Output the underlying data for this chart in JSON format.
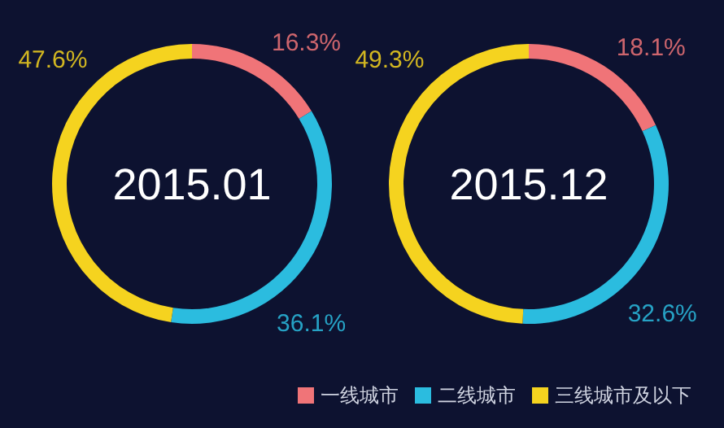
{
  "chart_data": [
    {
      "type": "donut",
      "title": "2015.01",
      "categories": [
        "一线城市",
        "二线城市",
        "三线城市及以下"
      ],
      "values": [
        16.3,
        36.1,
        47.6
      ],
      "colors": [
        "#f07478",
        "#2bbcdf",
        "#f5d31f"
      ],
      "value_labels": [
        "16.3%",
        "36.1%",
        "47.6%"
      ],
      "legend": "bottom right"
    },
    {
      "type": "donut",
      "title": "2015.12",
      "categories": [
        null,
        null,
        null
      ],
      "values": [
        18.1,
        32.6,
        49.3
      ],
      "colors": [
        "#f07478",
        "#2bbcdf",
        "#f5d31f"
      ],
      "value_labels": [
        "18.1%",
        "32.6%",
        "49.3%"
      ],
      "legend": false
    }
  ]
}
